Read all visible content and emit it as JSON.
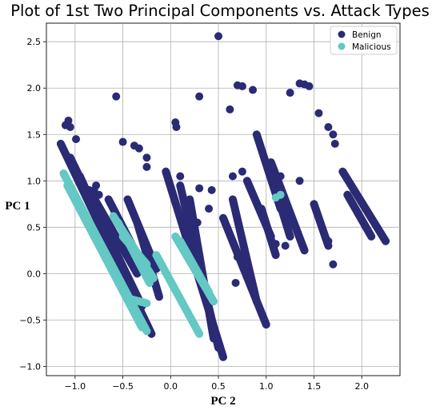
{
  "chart_data": {
    "type": "scatter",
    "title": "Plot of 1st Two Principal Components vs. Attack Types",
    "xlabel": "PC 2",
    "ylabel": "PC 1",
    "xlim": [
      -1.3,
      2.4
    ],
    "ylim": [
      -1.1,
      2.7
    ],
    "xticks": [
      -1.0,
      -0.5,
      0.0,
      0.5,
      1.0,
      1.5,
      2.0
    ],
    "xtick_labels": [
      "−1.0",
      "−0.5",
      "0.0",
      "0.5",
      "1.0",
      "1.5",
      "2.0"
    ],
    "yticks": [
      -1.0,
      -0.5,
      0.0,
      0.5,
      1.0,
      1.5,
      2.0,
      2.5
    ],
    "ytick_labels": [
      "−1.0",
      "−0.5",
      "0.0",
      "0.5",
      "1.0",
      "1.5",
      "2.0",
      "2.5"
    ],
    "grid": true,
    "legend_position": "top-right",
    "series": [
      {
        "name": "Benign",
        "color": "#2b2a74",
        "segments": [
          [
            [
              -1.15,
              1.4
            ],
            [
              -0.2,
              -0.65
            ]
          ],
          [
            [
              -1.05,
              1.25
            ],
            [
              -0.3,
              -0.35
            ]
          ],
          [
            [
              -0.95,
              1.05
            ],
            [
              -0.4,
              -0.2
            ]
          ],
          [
            [
              -0.85,
              0.9
            ],
            [
              -0.35,
              0.0
            ]
          ],
          [
            [
              -0.65,
              0.8
            ],
            [
              -0.25,
              0.0
            ]
          ],
          [
            [
              -0.45,
              0.8
            ],
            [
              -0.15,
              0.05
            ]
          ],
          [
            [
              -0.35,
              0.55
            ],
            [
              -0.12,
              -0.25
            ]
          ],
          [
            [
              -0.05,
              1.1
            ],
            [
              0.55,
              -0.9
            ]
          ],
          [
            [
              0.1,
              0.95
            ],
            [
              0.5,
              -0.8
            ]
          ],
          [
            [
              0.2,
              0.8
            ],
            [
              0.45,
              -0.7
            ]
          ],
          [
            [
              0.55,
              0.6
            ],
            [
              1.0,
              -0.55
            ]
          ],
          [
            [
              0.65,
              0.8
            ],
            [
              0.9,
              -0.3
            ]
          ],
          [
            [
              0.8,
              1.0
            ],
            [
              1.05,
              0.4
            ]
          ],
          [
            [
              0.9,
              1.5
            ],
            [
              1.15,
              0.7
            ]
          ],
          [
            [
              0.95,
              0.7
            ],
            [
              1.1,
              0.2
            ]
          ],
          [
            [
              1.05,
              1.2
            ],
            [
              1.4,
              0.25
            ]
          ],
          [
            [
              1.1,
              0.9
            ],
            [
              1.25,
              0.4
            ]
          ],
          [
            [
              1.5,
              0.75
            ],
            [
              1.65,
              0.3
            ]
          ],
          [
            [
              1.8,
              1.1
            ],
            [
              2.25,
              0.35
            ]
          ],
          [
            [
              1.85,
              0.85
            ],
            [
              2.1,
              0.4
            ]
          ]
        ],
        "points": [
          [
            -1.07,
            1.65
          ],
          [
            -1.1,
            1.6
          ],
          [
            -1.05,
            1.58
          ],
          [
            -0.99,
            1.45
          ],
          [
            -0.57,
            1.91
          ],
          [
            -0.5,
            1.42
          ],
          [
            -0.38,
            1.38
          ],
          [
            -0.33,
            1.35
          ],
          [
            -0.25,
            1.25
          ],
          [
            -0.25,
            1.15
          ],
          [
            0.05,
            1.63
          ],
          [
            0.06,
            1.58
          ],
          [
            0.3,
            1.91
          ],
          [
            0.5,
            2.56
          ],
          [
            0.62,
            1.77
          ],
          [
            0.7,
            2.03
          ],
          [
            0.75,
            2.02
          ],
          [
            0.86,
            1.98
          ],
          [
            1.25,
            1.95
          ],
          [
            1.35,
            2.05
          ],
          [
            1.4,
            2.04
          ],
          [
            1.45,
            2.02
          ],
          [
            1.55,
            1.73
          ],
          [
            1.65,
            1.58
          ],
          [
            1.7,
            1.5
          ],
          [
            1.72,
            1.4
          ],
          [
            -0.78,
            0.95
          ],
          [
            -0.75,
            0.85
          ],
          [
            0.4,
            0.7
          ],
          [
            0.43,
            0.9
          ],
          [
            0.28,
            0.55
          ],
          [
            0.75,
            1.1
          ],
          [
            0.65,
            1.05
          ],
          [
            -0.3,
            -0.55
          ],
          [
            1.1,
            0.32
          ],
          [
            1.2,
            0.3
          ],
          [
            1.35,
            1.0
          ],
          [
            1.15,
            1.05
          ],
          [
            1.65,
            0.35
          ],
          [
            1.7,
            0.1
          ],
          [
            0.7,
            0.18
          ],
          [
            0.8,
            0.0
          ],
          [
            0.68,
            -0.1
          ],
          [
            -0.8,
            0.9
          ],
          [
            0.3,
            0.92
          ],
          [
            0.1,
            1.05
          ]
        ]
      },
      {
        "name": "Malicious",
        "color": "#64c8c4",
        "segments": [
          [
            [
              -1.12,
              1.08
            ],
            [
              -0.25,
              -0.62
            ]
          ],
          [
            [
              -1.08,
              0.95
            ],
            [
              -0.3,
              -0.58
            ]
          ],
          [
            [
              -0.6,
              0.62
            ],
            [
              -0.18,
              -0.05
            ]
          ],
          [
            [
              -0.55,
              0.55
            ],
            [
              -0.22,
              -0.1
            ]
          ],
          [
            [
              -0.5,
              0.4
            ],
            [
              -0.25,
              0.1
            ]
          ],
          [
            [
              0.05,
              0.4
            ],
            [
              0.45,
              -0.3
            ]
          ],
          [
            [
              0.1,
              0.35
            ],
            [
              0.4,
              -0.2
            ]
          ],
          [
            [
              -0.15,
              0.2
            ],
            [
              0.3,
              -0.65
            ]
          ],
          [
            [
              -0.4,
              -0.28
            ],
            [
              -0.25,
              -0.32
            ]
          ]
        ],
        "points": [
          [
            1.1,
            0.82
          ],
          [
            1.15,
            0.85
          ]
        ]
      }
    ]
  }
}
